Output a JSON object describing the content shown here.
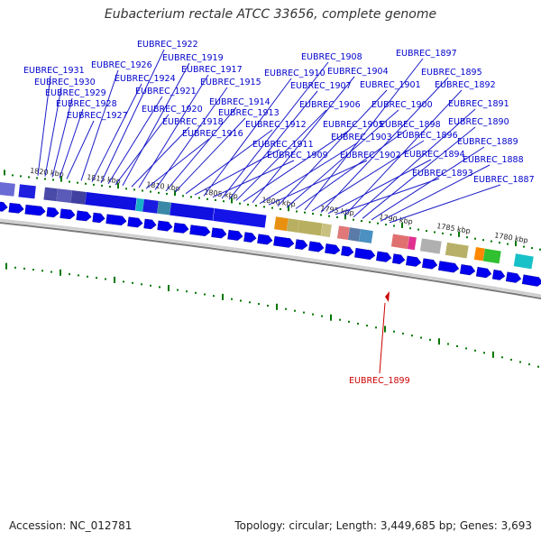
{
  "title": "Eubacterium rectale ATCC 33656, complete genome",
  "footer": {
    "accession": "Accession: NC_012781",
    "summary": "Topology: circular; Length: 3,449,685 bp; Genes: 3,693"
  },
  "colors": {
    "gene_label": "#0000cc",
    "highlight_label": "#cc0000",
    "tick": "#007700",
    "gene_arrow": "#0000ee",
    "backbone": "#888888"
  },
  "scale_labels": [
    "1820 kbp",
    "1815 kbp",
    "1810 kbp",
    "1805 kbp",
    "1800 kbp",
    "1795 kbp",
    "1790 kbp",
    "1785 kbp",
    "1780 kbp"
  ],
  "gene_labels": [
    "EUBREC_1931",
    "EUBREC_1930",
    "EUBREC_1929",
    "EUBREC_1928",
    "EUBREC_1927",
    "EUBREC_1926",
    "EUBREC_1924",
    "EUBREC_1922",
    "EUBREC_1921",
    "EUBREC_1920",
    "EUBREC_1919",
    "EUBREC_1918",
    "EUBREC_1917",
    "EUBREC_1916",
    "EUBREC_1915",
    "EUBREC_1914",
    "EUBREC_1913",
    "EUBREC_1912",
    "EUBREC_1911",
    "EUBREC_1910",
    "EUBREC_1909",
    "EUBREC_1908",
    "EUBREC_1907",
    "EUBREC_1906",
    "EUBREC_1905",
    "EUBREC_1904",
    "EUBREC_1903",
    "EUBREC_1902",
    "EUBREC_1901",
    "EUBREC_1900",
    "EUBREC_1898",
    "EUBREC_1897",
    "EUBREC_1896",
    "EUBREC_1895",
    "EUBREC_1894",
    "EUBREC_1893",
    "EUBREC_1892",
    "EUBREC_1891",
    "EUBREC_1890",
    "EUBREC_1889",
    "EUBREC_1888",
    "EUBREC_1887"
  ],
  "highlight_label": "EUBREC_1899"
}
